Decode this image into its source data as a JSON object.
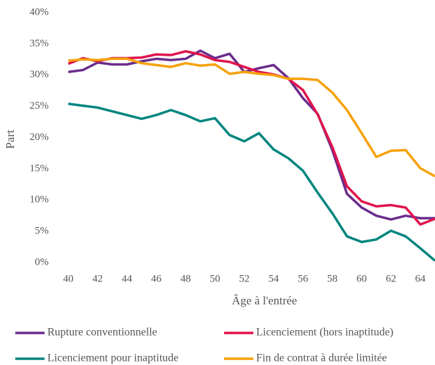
{
  "chart_data": {
    "type": "line",
    "xlabel": "Âge à l'entrée",
    "ylabel": "Part",
    "x": [
      40,
      41,
      42,
      43,
      44,
      45,
      46,
      47,
      48,
      49,
      50,
      51,
      52,
      53,
      54,
      55,
      56,
      57,
      58,
      59,
      60,
      61,
      62,
      63,
      64,
      65
    ],
    "xlim": [
      39,
      65
    ],
    "xticks": [
      40,
      42,
      44,
      46,
      48,
      50,
      52,
      54,
      56,
      58,
      60,
      62,
      64
    ],
    "ylim": [
      0,
      40
    ],
    "yticks": [
      {
        "value": 0,
        "label": "0%"
      },
      {
        "value": 5,
        "label": "5%"
      },
      {
        "value": 10,
        "label": "10%"
      },
      {
        "value": 15,
        "label": "15%"
      },
      {
        "value": 20,
        "label": "20%"
      },
      {
        "value": 25,
        "label": "25%"
      },
      {
        "value": 30,
        "label": "30%"
      },
      {
        "value": 35,
        "label": "35%"
      },
      {
        "value": 40,
        "label": "40%"
      }
    ],
    "grid": false,
    "legend": "bottom",
    "series": [
      {
        "name": "Rupture conventionnelle",
        "color": "#6a2c8c",
        "values": [
          30.5,
          30.8,
          32,
          31.7,
          31.7,
          32.2,
          32.6,
          32.4,
          32.6,
          33.9,
          32.7,
          33.4,
          30.5,
          31.1,
          31.6,
          29.5,
          26.3,
          23.8,
          18,
          11,
          8.8,
          7.5,
          6.9,
          7.5,
          7.1,
          7.1
        ]
      },
      {
        "name": "Licenciement (hors inaptitude)",
        "color": "#e0144c",
        "values": [
          31.8,
          32.7,
          32.2,
          32.7,
          32.7,
          32.8,
          33.3,
          33.2,
          33.8,
          33.3,
          32.4,
          32.1,
          31.3,
          30.5,
          30.1,
          29.4,
          27.6,
          23.7,
          18.5,
          12.2,
          9.8,
          9,
          9.2,
          8.8,
          6.1,
          7
        ]
      },
      {
        "name": "Licenciement pour inaptitude",
        "color": "#00857f",
        "values": [
          25.4,
          25.1,
          24.8,
          24.2,
          23.6,
          23,
          23.6,
          24.4,
          23.6,
          22.6,
          23.1,
          20.4,
          19.4,
          20.7,
          18.1,
          16.7,
          14.7,
          11.2,
          7.9,
          4.2,
          3.3,
          3.7,
          5.1,
          4.2,
          2.3,
          0.3
        ]
      },
      {
        "name": "Fin de contrat à durée limitée",
        "color": "#f7a10c",
        "values": [
          32.3,
          32.5,
          32.4,
          32.6,
          32.6,
          31.9,
          31.6,
          31.3,
          31.9,
          31.5,
          31.7,
          30.2,
          30.5,
          30.2,
          30,
          29.4,
          29.4,
          29.2,
          27.2,
          24.4,
          20.7,
          16.9,
          17.9,
          18,
          15.1,
          13.8
        ]
      }
    ]
  }
}
